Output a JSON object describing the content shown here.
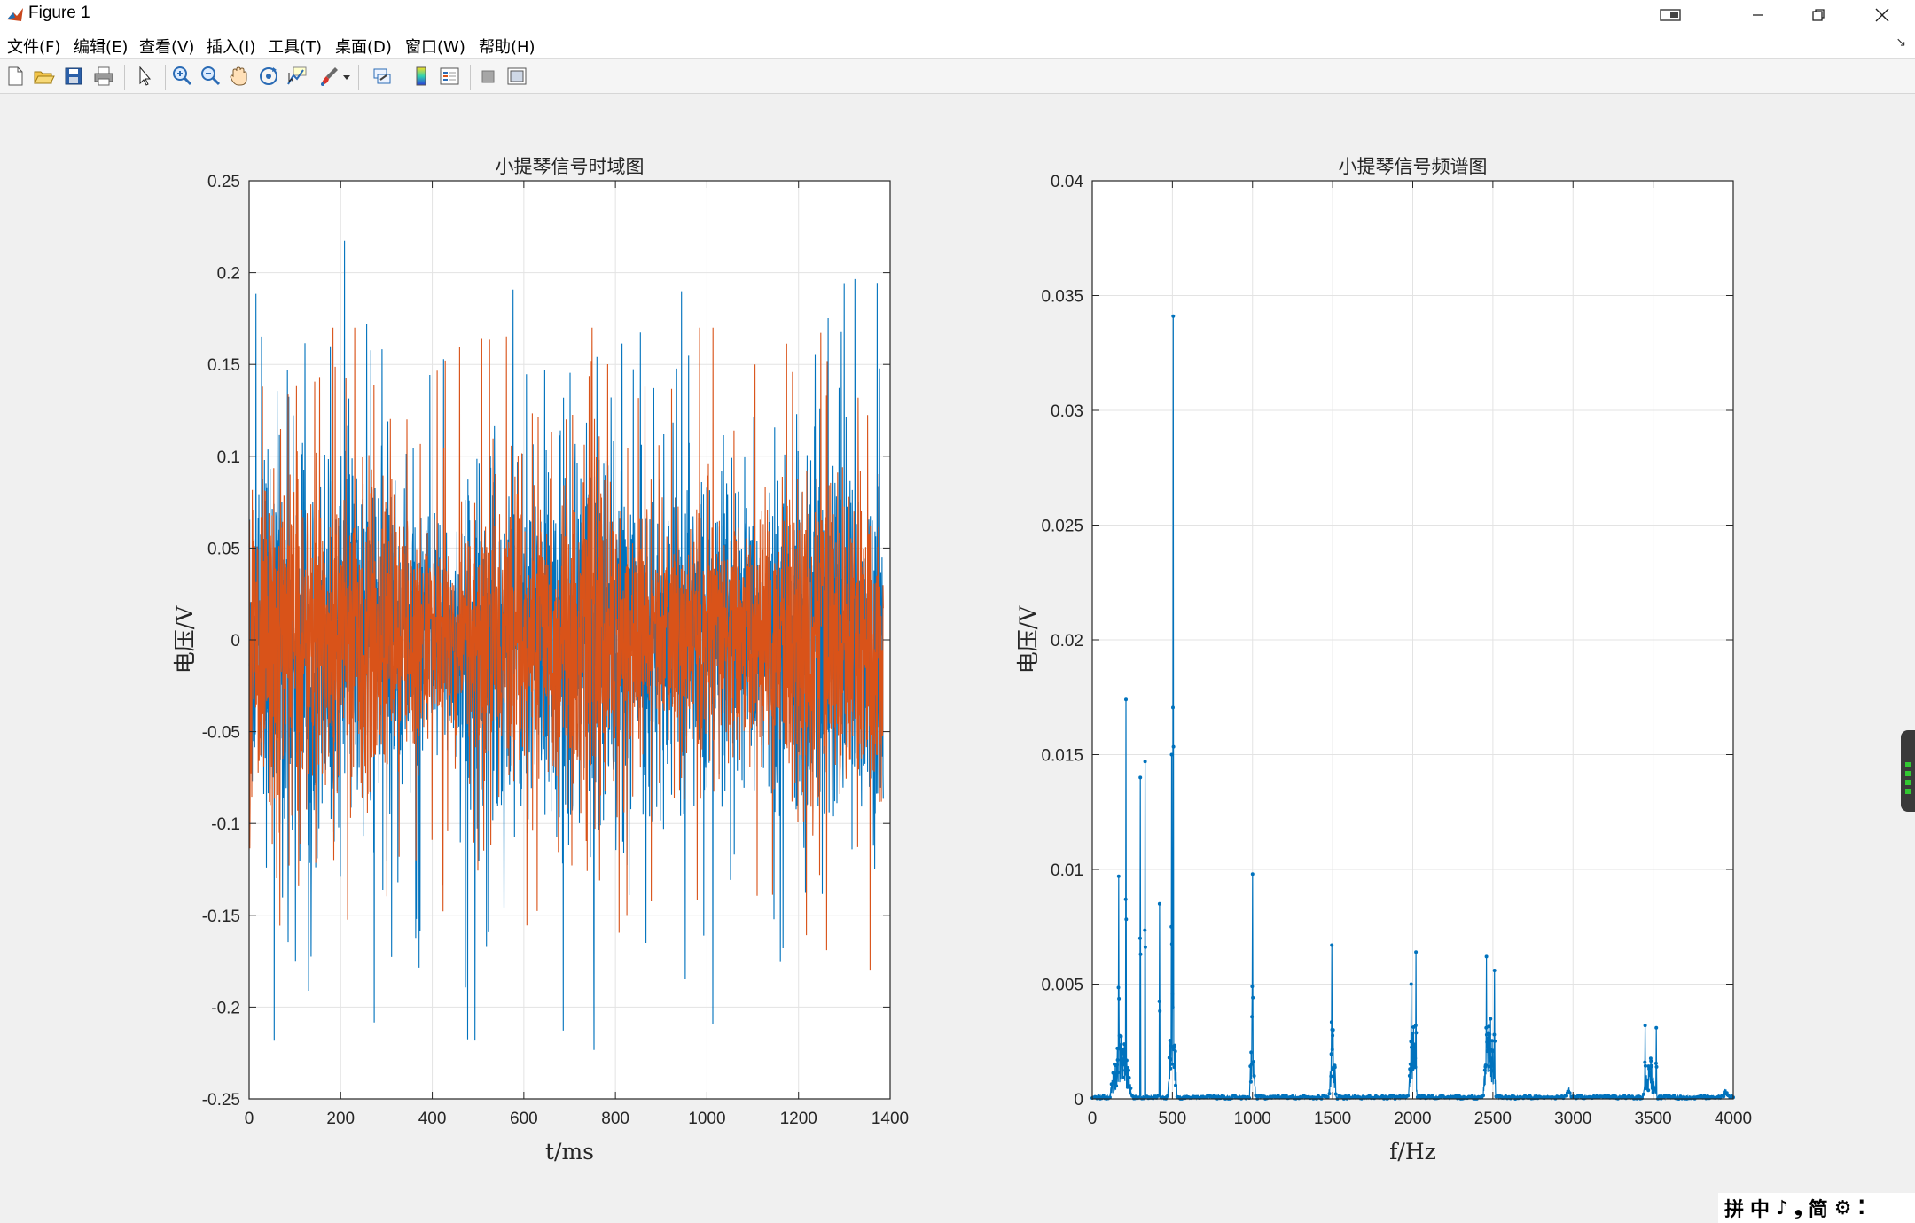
{
  "window": {
    "title": "Figure 1",
    "minimize_icon": "minimize-icon",
    "restore_icon": "restore-icon",
    "close_icon": "close-icon",
    "extra_icon": "snap-layout-icon"
  },
  "menu": {
    "items": [
      "文件(F)",
      "编辑(E)",
      "查看(V)",
      "插入(I)",
      "工具(T)",
      "桌面(D)",
      "窗口(W)",
      "帮助(H)"
    ],
    "arrow_icon": "dock-arrow-icon"
  },
  "toolbar": {
    "icons": [
      "new-figure-icon",
      "open-file-icon",
      "save-icon",
      "print-icon",
      "edit-plot-arrow-icon",
      "zoom-in-icon",
      "zoom-out-icon",
      "pan-hand-icon",
      "rotate-3d-icon",
      "data-cursor-icon",
      "brush-icon",
      "brush-dropdown-icon",
      "link-plot-icon",
      "insert-colorbar-icon",
      "insert-legend-icon",
      "hide-plot-tools-icon",
      "show-plot-tools-icon"
    ]
  },
  "ime": {
    "glyphs": [
      "拼",
      "中",
      "♪",
      "❟",
      "简",
      "⚙",
      "⁚"
    ]
  },
  "chart_data": [
    {
      "type": "line",
      "title": "小提琴信号时域图",
      "xlabel": "t/ms",
      "ylabel": "电压/V",
      "xlim": [
        0,
        1400
      ],
      "ylim": [
        -0.25,
        0.25
      ],
      "xticks": [
        "0",
        "200",
        "400",
        "600",
        "800",
        "1000",
        "1200",
        "1400"
      ],
      "yticks": [
        "-0.25",
        "-0.2",
        "-0.15",
        "-0.1",
        "-0.05",
        "0",
        "0.05",
        "0.1",
        "0.15",
        "0.2",
        "0.25"
      ],
      "grid": true,
      "x_extent": [
        0,
        1385
      ],
      "series": [
        {
          "color": "#0072BD",
          "peak_max": 0.235,
          "peak_min": -0.235,
          "typical_abs": 0.1
        },
        {
          "color": "#D95319",
          "peak_max": 0.17,
          "peak_min": -0.2,
          "typical_abs": 0.08
        }
      ]
    },
    {
      "type": "line",
      "title": "小提琴信号频谱图",
      "xlabel": "f/Hz",
      "ylabel": "电压/V",
      "xlim": [
        0,
        4000
      ],
      "ylim": [
        0,
        0.04
      ],
      "xticks": [
        "0",
        "500",
        "1000",
        "1500",
        "2000",
        "2500",
        "3000",
        "3500",
        "4000"
      ],
      "yticks": [
        "0",
        "0.005",
        "0.01",
        "0.015",
        "0.02",
        "0.025",
        "0.03",
        "0.035",
        "0.04"
      ],
      "grid": true,
      "marker": "dot",
      "color": "#0072BD",
      "peaks": [
        [
          165,
          0.0097
        ],
        [
          210,
          0.0174
        ],
        [
          300,
          0.014
        ],
        [
          330,
          0.0147
        ],
        [
          420,
          0.0085
        ],
        [
          495,
          0.015
        ],
        [
          505,
          0.0341
        ],
        [
          1000,
          0.0098
        ],
        [
          1495,
          0.0067
        ],
        [
          1990,
          0.005
        ],
        [
          2020,
          0.0064
        ],
        [
          2460,
          0.0062
        ],
        [
          2510,
          0.0056
        ],
        [
          3450,
          0.0032
        ],
        [
          3520,
          0.0031
        ]
      ],
      "clusters": [
        {
          "center": 180,
          "width": 150,
          "height": 0.0035
        },
        {
          "center": 500,
          "width": 60,
          "height": 0.006
        },
        {
          "center": 1000,
          "width": 40,
          "height": 0.0045
        },
        {
          "center": 1500,
          "width": 50,
          "height": 0.0035
        },
        {
          "center": 2000,
          "width": 60,
          "height": 0.004
        },
        {
          "center": 2480,
          "width": 90,
          "height": 0.004
        },
        {
          "center": 3480,
          "width": 100,
          "height": 0.002
        },
        {
          "center": 2970,
          "width": 50,
          "height": 0.0006
        },
        {
          "center": 3950,
          "width": 60,
          "height": 0.0005
        }
      ]
    }
  ]
}
